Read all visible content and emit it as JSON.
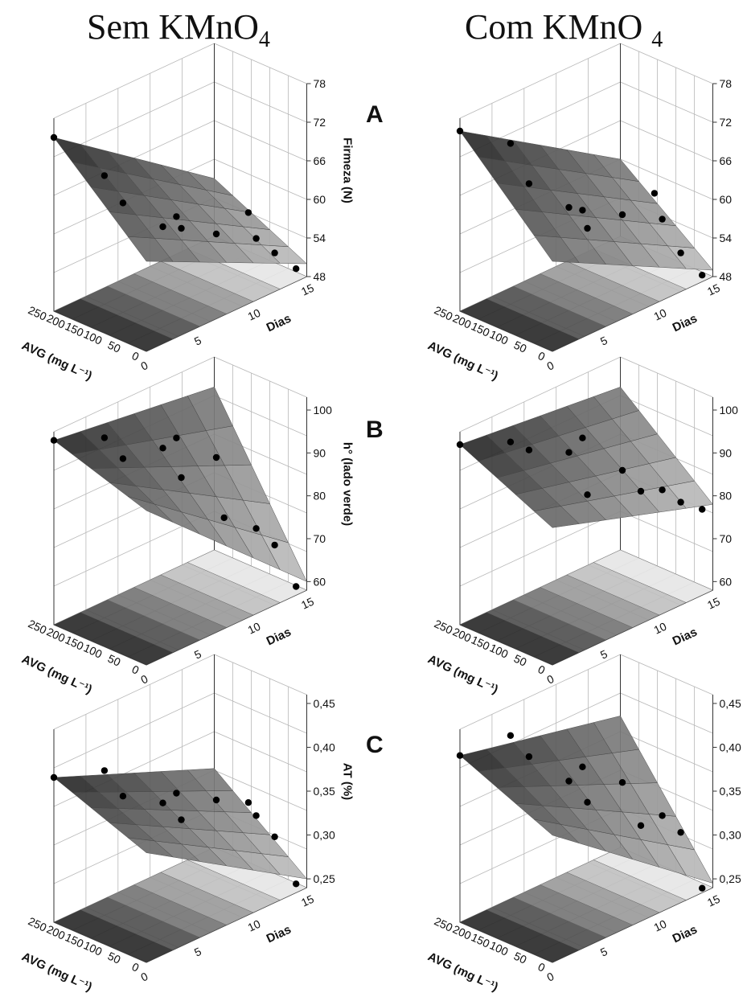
{
  "titles": {
    "left": {
      "text": "Sem  KMnO",
      "sub": "4"
    },
    "right": {
      "text": "Com KMnO ",
      "sub": "4"
    }
  },
  "row_letters": [
    "A",
    "B",
    "C"
  ],
  "colors": {
    "surface_dark": "#222222",
    "surface_light": "#e2e2e2",
    "points": "#000000"
  },
  "chart_data": [
    {
      "type": "surface3d",
      "row": "A",
      "column": "Sem KMnO4",
      "xlabel": "Dias",
      "ylabel": "AVG (mg L⁻¹)",
      "zlabel": "Firmeza (N)",
      "xticks": [
        "0",
        "5",
        "10",
        "15"
      ],
      "yticks": [
        "0",
        "50",
        "100",
        "150",
        "200",
        "250"
      ],
      "zticks": [
        "48",
        "54",
        "60",
        "66",
        "72",
        "78"
      ],
      "zlim": [
        48,
        78
      ],
      "points": [
        [
          0,
          250,
          75
        ],
        [
          3,
          200,
          68
        ],
        [
          3,
          150,
          65
        ],
        [
          5,
          100,
          61
        ],
        [
          5,
          50,
          62
        ],
        [
          8,
          150,
          59
        ],
        [
          10,
          100,
          56
        ],
        [
          12,
          50,
          55
        ],
        [
          12,
          0,
          54
        ],
        [
          14,
          0,
          50
        ],
        [
          13,
          100,
          57
        ]
      ]
    },
    {
      "type": "surface3d",
      "row": "A",
      "column": "Com KMnO4",
      "xlabel": "Dias",
      "ylabel": "AVG (mg L⁻¹)",
      "zlabel": "Firmeza (N)",
      "xticks": [
        "0",
        "5",
        "10",
        "15"
      ],
      "yticks": [
        "0",
        "50",
        "100",
        "150",
        "200",
        "250"
      ],
      "zticks": [
        "48",
        "54",
        "60",
        "66",
        "72",
        "78"
      ],
      "zlim": [
        48,
        78
      ],
      "points": [
        [
          0,
          250,
          76
        ],
        [
          3,
          200,
          73
        ],
        [
          3,
          150,
          68
        ],
        [
          5,
          100,
          64
        ],
        [
          5,
          50,
          62
        ],
        [
          8,
          150,
          60
        ],
        [
          10,
          100,
          59
        ],
        [
          12,
          50,
          58
        ],
        [
          12,
          0,
          54
        ],
        [
          14,
          0,
          49
        ],
        [
          13,
          100,
          60
        ]
      ]
    },
    {
      "type": "surface3d",
      "row": "B",
      "column": "Sem KMnO4",
      "xlabel": "Dias",
      "ylabel": "AVG (mg L⁻¹)",
      "zlabel": "h° (lado verde)",
      "xticks": [
        "0",
        "5",
        "10",
        "15"
      ],
      "yticks": [
        "0",
        "50",
        "100",
        "150",
        "200",
        "250"
      ],
      "zticks": [
        "60",
        "70",
        "80",
        "90",
        "100"
      ],
      "zlim": [
        58,
        103
      ],
      "points": [
        [
          0,
          250,
          101
        ],
        [
          3,
          200,
          100
        ],
        [
          3,
          150,
          97
        ],
        [
          5,
          100,
          99
        ],
        [
          5,
          50,
          94
        ],
        [
          8,
          150,
          96
        ],
        [
          10,
          100,
          91
        ],
        [
          9,
          50,
          80
        ],
        [
          12,
          50,
          74
        ],
        [
          12,
          0,
          72
        ],
        [
          14,
          0,
          60
        ]
      ]
    },
    {
      "type": "surface3d",
      "row": "B",
      "column": "Com KMnO4",
      "xlabel": "Dias",
      "ylabel": "AVG (mg L⁻¹)",
      "zlabel": "h° (lado verde)",
      "xticks": [
        "0",
        "5",
        "10",
        "15"
      ],
      "yticks": [
        "0",
        "50",
        "100",
        "150",
        "200",
        "250"
      ],
      "zticks": [
        "60",
        "70",
        "80",
        "90",
        "100"
      ],
      "zlim": [
        58,
        103
      ],
      "points": [
        [
          0,
          250,
          100
        ],
        [
          3,
          200,
          99
        ],
        [
          3,
          150,
          99
        ],
        [
          5,
          100,
          98
        ],
        [
          5,
          50,
          90
        ],
        [
          8,
          150,
          96
        ],
        [
          10,
          100,
          88
        ],
        [
          10,
          50,
          85
        ],
        [
          12,
          50,
          83
        ],
        [
          12,
          0,
          82
        ],
        [
          14,
          0,
          78
        ]
      ]
    },
    {
      "type": "surface3d",
      "row": "C",
      "column": "Sem KMnO4",
      "xlabel": "Dias",
      "ylabel": "AVG (mg L⁻¹)",
      "zlabel": "AT (%)",
      "xticks": [
        "0",
        "5",
        "10",
        "15"
      ],
      "yticks": [
        "0",
        "50",
        "100",
        "150",
        "200",
        "250"
      ],
      "zticks": [
        "0,25",
        "0,30",
        "0,35",
        "0,40",
        "0,45"
      ],
      "zlim": [
        0.24,
        0.46
      ],
      "points": [
        [
          0,
          250,
          0.405
        ],
        [
          3,
          200,
          0.405
        ],
        [
          3,
          150,
          0.385
        ],
        [
          5,
          100,
          0.375
        ],
        [
          5,
          50,
          0.365
        ],
        [
          8,
          150,
          0.36
        ],
        [
          10,
          100,
          0.35
        ],
        [
          12,
          50,
          0.33
        ],
        [
          12,
          0,
          0.315
        ],
        [
          14,
          0,
          0.25
        ],
        [
          13,
          100,
          0.33
        ]
      ]
    },
    {
      "type": "surface3d",
      "row": "C",
      "column": "Com KMnO4",
      "xlabel": "Dias",
      "ylabel": "AVG (mg L⁻¹)",
      "zlabel": "AT (%)",
      "xticks": [
        "0",
        "5",
        "10",
        "15"
      ],
      "yticks": [
        "0",
        "50",
        "100",
        "150",
        "200",
        "250"
      ],
      "zticks": [
        "0,25",
        "0,30",
        "0,35",
        "0,40",
        "0,45"
      ],
      "zlim": [
        0.24,
        0.46
      ],
      "points": [
        [
          0,
          250,
          0.43
        ],
        [
          3,
          200,
          0.445
        ],
        [
          3,
          150,
          0.43
        ],
        [
          5,
          100,
          0.4
        ],
        [
          5,
          50,
          0.385
        ],
        [
          8,
          150,
          0.39
        ],
        [
          10,
          100,
          0.37
        ],
        [
          10,
          50,
          0.33
        ],
        [
          12,
          50,
          0.33
        ],
        [
          12,
          0,
          0.32
        ],
        [
          14,
          0,
          0.245
        ]
      ]
    }
  ]
}
